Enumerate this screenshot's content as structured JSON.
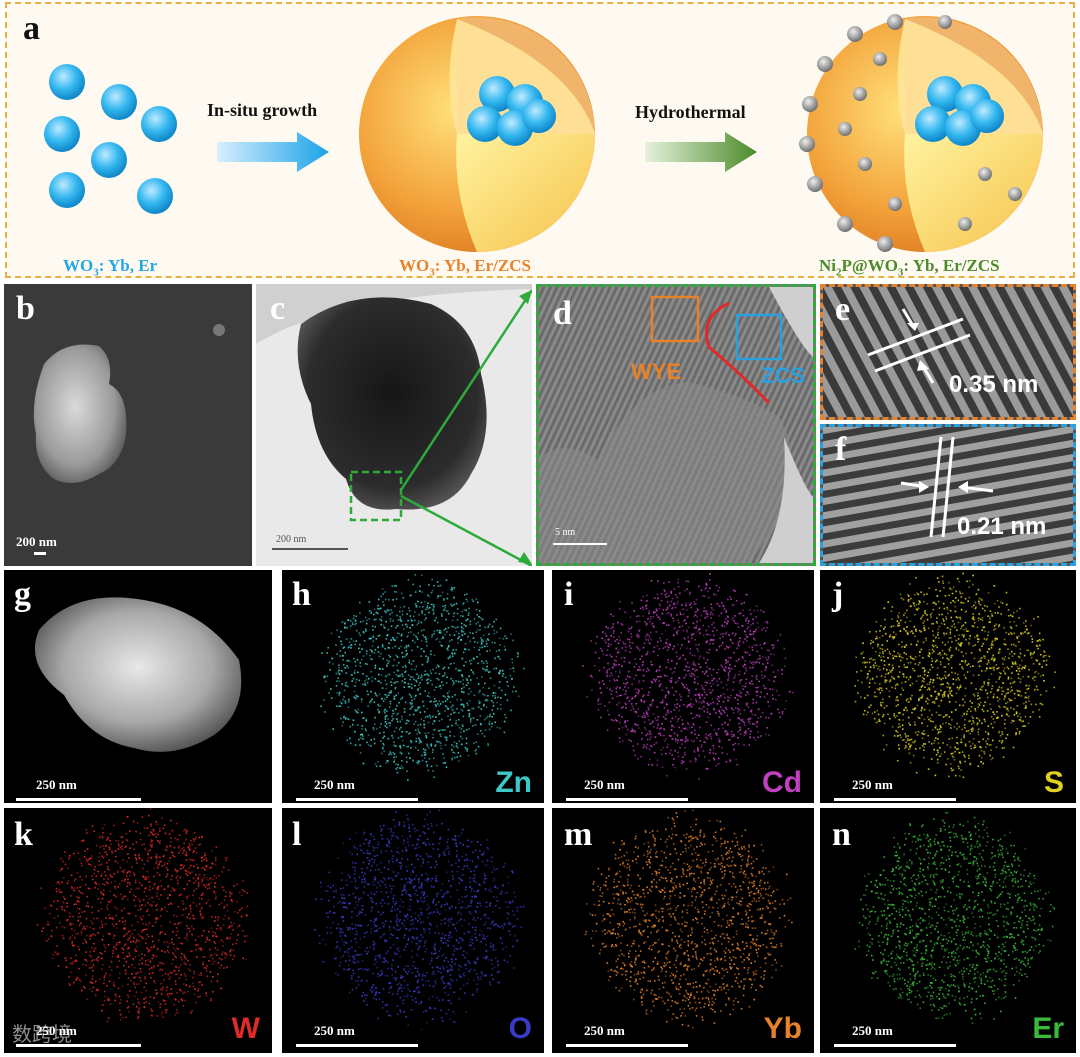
{
  "panel_a": {
    "letter": "a",
    "caption_left": "WO",
    "caption_left_sub": "3",
    "caption_left_rest": ": Yb, Er",
    "arrow1_label": "In-situ growth",
    "caption_mid": "WO",
    "caption_mid_sub": "3",
    "caption_mid_rest": ": Yb, Er/ZCS",
    "arrow2_label": "Hydrothermal",
    "caption_right_a": "Ni",
    "caption_right_sub1": "2",
    "caption_right_b": "P@WO",
    "caption_right_sub2": "3",
    "caption_right_c": ": Yb, Er/ZCS"
  },
  "panels": {
    "b": {
      "letter": "b",
      "scale": "200 nm"
    },
    "c": {
      "letter": "c",
      "scale": "200 nm"
    },
    "d": {
      "letter": "d",
      "scale": "5 nm",
      "label_wye": "WYE",
      "label_zcs": "ZCS"
    },
    "e": {
      "letter": "e",
      "spacing": "0.35 nm"
    },
    "f": {
      "letter": "f",
      "spacing": "0.21 nm"
    },
    "g": {
      "letter": "g",
      "scale": "250 nm"
    },
    "h": {
      "letter": "h",
      "scale": "250 nm",
      "element": "Zn"
    },
    "i": {
      "letter": "i",
      "scale": "250 nm",
      "element": "Cd"
    },
    "j": {
      "letter": "j",
      "scale": "250 nm",
      "element": "S"
    },
    "k": {
      "letter": "k",
      "scale": "250 nm",
      "element": "W"
    },
    "l": {
      "letter": "l",
      "scale": "250 nm",
      "element": "O"
    },
    "m": {
      "letter": "m",
      "scale": "250 nm",
      "element": "Yb"
    },
    "n": {
      "letter": "n",
      "scale": "250 nm",
      "element": "Er"
    }
  },
  "colors": {
    "wo3_blue": "#22a7e6",
    "zcs_orange": "#e8822a",
    "ni2p_green": "#4c8a2a",
    "zn": "#3ec9c9",
    "cd": "#c040c0",
    "s": "#e0d020",
    "w": "#e02a2a",
    "o": "#3a3ac8",
    "yb": "#e8822a",
    "er": "#3aba3a",
    "frame_green": "#2eaa3a",
    "frame_orange": "#e8822a",
    "frame_blue": "#2aa0e0"
  },
  "watermark": "数跨境"
}
